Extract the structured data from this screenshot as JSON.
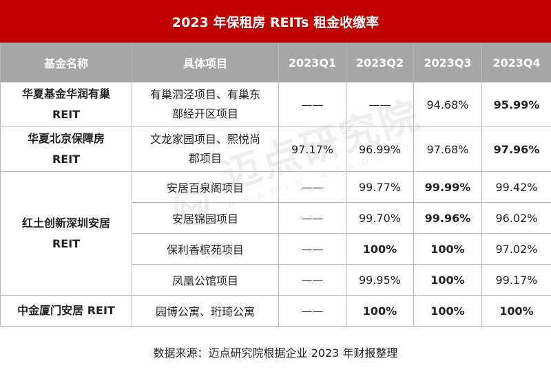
{
  "title": "2023 年保租房 REITs 租金收缴率",
  "headers": [
    "基金名称",
    "具体项目",
    "2023Q1",
    "2023Q2",
    "2023Q3",
    "2023Q4"
  ],
  "funds": [
    {
      "name_line1": "华夏基金华润有巢",
      "name_line2": "REIT"
    },
    {
      "name_line1": "华夏北京保障房",
      "name_line2": "REIT"
    },
    {
      "name_line1": "红土创新深圳安居",
      "name_line2": "REIT"
    },
    {
      "name_line1": "中金厦门安居 REIT",
      "name_line2": ""
    }
  ],
  "rows": [
    {
      "project_line1": "有巢泗泾项目、有巢东",
      "project_line2": "部经开区项目",
      "q1": "——",
      "q2": "——",
      "q3": "94.68%",
      "q4": "95.99%"
    },
    {
      "project_line1": "文龙家园项目、熙悦尚",
      "project_line2": "郡项目",
      "q1": "97.17%",
      "q2": "96.99%",
      "q3": "97.68%",
      "q4": "97.96%"
    },
    {
      "project_line1": "安居百泉阁项目",
      "project_line2": "",
      "q1": "——",
      "q2": "99.77%",
      "q3": "99.99%",
      "q4": "99.42%"
    },
    {
      "project_line1": "安居锦园项目",
      "project_line2": "",
      "q1": "——",
      "q2": "99.70%",
      "q3": "99.96%",
      "q4": "96.02%"
    },
    {
      "project_line1": "保利香槟苑项目",
      "project_line2": "",
      "q1": "——",
      "q2": "100%",
      "q3": "100%",
      "q4": "97.02%"
    },
    {
      "project_line1": "凤凰公馆项目",
      "project_line2": "",
      "q1": "——",
      "q2": "99.95%",
      "q3": "100%",
      "q4": "99.17%"
    },
    {
      "project_line1": "园博公寓、珩琦公寓",
      "project_line2": "",
      "q1": "——",
      "q2": "100%",
      "q3": "100%",
      "q4": "100%"
    }
  ],
  "watermark": {
    "text": "迈点研究院",
    "sub": "MEADIN ACADEMY"
  },
  "source": "数据来源：迈点研究院根据企业 2023 年财报整理",
  "colors": {
    "accent": "#c00000",
    "header_bg": "#a6a6a6",
    "border": "#b7b7b7"
  }
}
